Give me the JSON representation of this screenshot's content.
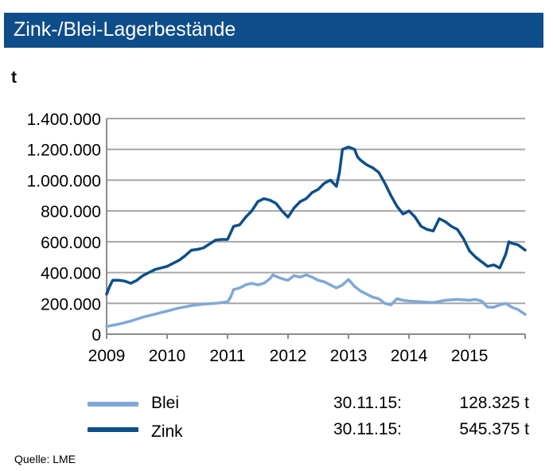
{
  "title": "Zink-/Blei-Lagerbestände",
  "unit_label": "t",
  "source_label": "Quelle:",
  "source_value": "LME",
  "colors": {
    "title_bg": "#0f4d8a",
    "blei": "#7fa8d6",
    "zink": "#0d4f8a",
    "grid": "#a6a6a6"
  },
  "legend": [
    {
      "label": "Blei",
      "date": "30.11.15:",
      "value": "128.325 t"
    },
    {
      "label": "Zink",
      "date": "30.11.15:",
      "value": "545.375 t"
    }
  ],
  "chart_data": {
    "type": "line",
    "title": "Zink-/Blei-Lagerbestände",
    "ylabel": "t",
    "xlabel": "",
    "ylim": [
      0,
      1400000
    ],
    "xlim": [
      2009.0,
      2015.92
    ],
    "y_ticks": [
      0,
      200000,
      400000,
      600000,
      800000,
      1000000,
      1200000,
      1400000
    ],
    "y_tick_labels": [
      "0",
      "200.000",
      "400.000",
      "600.000",
      "800.000",
      "1.000.000",
      "1.200.000",
      "1.400.000"
    ],
    "x_ticks": [
      2009,
      2010,
      2011,
      2012,
      2013,
      2014,
      2015
    ],
    "x_tick_labels": [
      "2009",
      "2010",
      "2011",
      "2012",
      "2013",
      "2014",
      "2015"
    ],
    "grid": true,
    "series": [
      {
        "name": "Blei",
        "x": [
          2009.0,
          2009.2,
          2009.4,
          2009.6,
          2009.8,
          2010.0,
          2010.2,
          2010.4,
          2010.6,
          2010.8,
          2011.0,
          2011.05,
          2011.1,
          2011.2,
          2011.3,
          2011.4,
          2011.5,
          2011.6,
          2011.7,
          2011.75,
          2011.8,
          2011.9,
          2012.0,
          2012.1,
          2012.2,
          2012.3,
          2012.4,
          2012.5,
          2012.6,
          2012.7,
          2012.8,
          2012.9,
          2013.0,
          2013.1,
          2013.2,
          2013.3,
          2013.4,
          2013.5,
          2013.6,
          2013.7,
          2013.8,
          2013.9,
          2014.0,
          2014.2,
          2014.4,
          2014.6,
          2014.8,
          2015.0,
          2015.1,
          2015.2,
          2015.3,
          2015.4,
          2015.5,
          2015.6,
          2015.7,
          2015.8,
          2015.92
        ],
        "y": [
          50000,
          65000,
          85000,
          110000,
          130000,
          150000,
          170000,
          185000,
          195000,
          200000,
          210000,
          240000,
          290000,
          300000,
          320000,
          330000,
          320000,
          330000,
          360000,
          385000,
          375000,
          360000,
          350000,
          380000,
          370000,
          385000,
          370000,
          350000,
          340000,
          320000,
          300000,
          320000,
          355000,
          310000,
          280000,
          260000,
          240000,
          230000,
          200000,
          190000,
          230000,
          220000,
          215000,
          210000,
          205000,
          220000,
          225000,
          220000,
          225000,
          215000,
          175000,
          175000,
          190000,
          200000,
          175000,
          160000,
          128325
        ]
      },
      {
        "name": "Zink",
        "x": [
          2009.0,
          2009.05,
          2009.1,
          2009.2,
          2009.3,
          2009.4,
          2009.5,
          2009.6,
          2009.7,
          2009.8,
          2010.0,
          2010.2,
          2010.3,
          2010.4,
          2010.5,
          2010.6,
          2010.8,
          2010.9,
          2011.0,
          2011.1,
          2011.2,
          2011.3,
          2011.4,
          2011.5,
          2011.6,
          2011.7,
          2011.8,
          2011.9,
          2012.0,
          2012.1,
          2012.2,
          2012.3,
          2012.4,
          2012.5,
          2012.6,
          2012.7,
          2012.8,
          2012.85,
          2012.9,
          2013.0,
          2013.1,
          2013.15,
          2013.2,
          2013.3,
          2013.4,
          2013.5,
          2013.6,
          2013.7,
          2013.8,
          2013.9,
          2014.0,
          2014.1,
          2014.2,
          2014.3,
          2014.4,
          2014.5,
          2014.6,
          2014.7,
          2014.8,
          2014.9,
          2015.0,
          2015.1,
          2015.2,
          2015.3,
          2015.4,
          2015.5,
          2015.6,
          2015.65,
          2015.7,
          2015.8,
          2015.92
        ],
        "y": [
          260000,
          310000,
          350000,
          350000,
          345000,
          330000,
          350000,
          380000,
          400000,
          420000,
          440000,
          480000,
          510000,
          545000,
          550000,
          560000,
          610000,
          615000,
          615000,
          700000,
          710000,
          760000,
          800000,
          860000,
          880000,
          870000,
          850000,
          800000,
          760000,
          820000,
          860000,
          880000,
          920000,
          940000,
          980000,
          1000000,
          960000,
          1050000,
          1200000,
          1215000,
          1200000,
          1150000,
          1130000,
          1100000,
          1080000,
          1050000,
          980000,
          900000,
          830000,
          780000,
          800000,
          760000,
          700000,
          680000,
          670000,
          750000,
          730000,
          700000,
          680000,
          620000,
          540000,
          500000,
          470000,
          440000,
          450000,
          430000,
          520000,
          600000,
          590000,
          580000,
          545375
        ]
      }
    ]
  }
}
